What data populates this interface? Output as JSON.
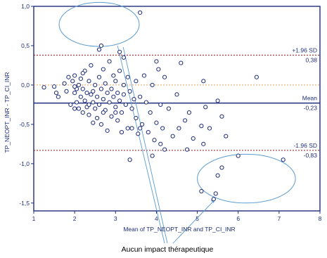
{
  "chart_data": {
    "type": "scatter",
    "title": "",
    "xlabel": "Mean of TP_NEOPT_INR and TP_CI_INR",
    "ylabel": "TP_NEOPT_INR - TP_CI_INR",
    "xlim": [
      1,
      8
    ],
    "ylim": [
      -1.6,
      1.0
    ],
    "x_ticks": [
      "1",
      "2",
      "3",
      "4",
      "5",
      "6",
      "7",
      "8"
    ],
    "y_ticks": [
      "1,0",
      "0,5",
      "0,0",
      "-0,5",
      "-1,0",
      "-1,5"
    ],
    "grid": false,
    "reference_lines": [
      {
        "id": "upper-loa",
        "label": "+1.96 SD",
        "value_label": "0,38",
        "y": 0.38,
        "style": "dotted",
        "color": "#8B1A1A"
      },
      {
        "id": "mean",
        "label": "Mean",
        "value_label": "-0,23",
        "y": -0.23,
        "style": "solid",
        "color": "#1F2E7A"
      },
      {
        "id": "lower-loa",
        "label": "-1.96 SD",
        "value_label": "-0,83",
        "y": -0.83,
        "style": "dotted",
        "color": "#8B1A1A"
      },
      {
        "id": "zero",
        "label": "",
        "value_label": "",
        "y": 0.0,
        "style": "dotted",
        "color": "#E0A060"
      }
    ],
    "annotation": {
      "text": "Aucun impact thérapeutique",
      "ellipses": [
        {
          "cx": 2.6,
          "cy": 0.77,
          "rx": 0.98,
          "ry": 0.28
        },
        {
          "cx": 6.2,
          "cy": -1.19,
          "rx": 1.2,
          "ry": 0.31
        }
      ]
    },
    "points": [
      [
        1.25,
        -0.03
      ],
      [
        1.5,
        -0.02
      ],
      [
        1.55,
        -0.1
      ],
      [
        1.6,
        -0.15
      ],
      [
        1.75,
        0.02
      ],
      [
        1.8,
        -0.08
      ],
      [
        1.85,
        0.1
      ],
      [
        1.9,
        -0.25
      ],
      [
        1.95,
        0.05
      ],
      [
        2.0,
        0.12
      ],
      [
        2.0,
        -0.1
      ],
      [
        2.05,
        -0.05
      ],
      [
        2.05,
        -0.22
      ],
      [
        2.1,
        -0.3
      ],
      [
        2.1,
        0.0
      ],
      [
        2.15,
        0.08
      ],
      [
        2.15,
        -0.15
      ],
      [
        2.2,
        -0.35
      ],
      [
        2.2,
        -0.05
      ],
      [
        2.25,
        0.18
      ],
      [
        2.25,
        -0.2
      ],
      [
        2.3,
        -0.1
      ],
      [
        2.3,
        -0.28
      ],
      [
        2.35,
        0.05
      ],
      [
        2.35,
        -0.38
      ],
      [
        2.4,
        -0.12
      ],
      [
        2.4,
        0.25
      ],
      [
        2.45,
        -0.22
      ],
      [
        2.45,
        -0.08
      ],
      [
        2.5,
        0.0
      ],
      [
        2.5,
        -0.3
      ],
      [
        2.55,
        -0.42
      ],
      [
        2.55,
        -0.15
      ],
      [
        2.6,
        0.1
      ],
      [
        2.6,
        -0.25
      ],
      [
        2.65,
        -0.05
      ],
      [
        2.65,
        -0.5
      ],
      [
        2.7,
        0.2
      ],
      [
        2.7,
        -0.18
      ],
      [
        2.75,
        -0.32
      ],
      [
        2.75,
        0.02
      ],
      [
        2.8,
        -0.1
      ],
      [
        2.8,
        -0.58
      ],
      [
        2.85,
        0.3
      ],
      [
        2.85,
        -0.22
      ],
      [
        2.9,
        -0.05
      ],
      [
        2.9,
        -0.4
      ],
      [
        2.95,
        0.12
      ],
      [
        2.95,
        -0.15
      ],
      [
        3.0,
        -0.28
      ],
      [
        3.0,
        0.05
      ],
      [
        3.05,
        -0.1
      ],
      [
        3.05,
        -0.45
      ],
      [
        3.1,
        0.18
      ],
      [
        3.1,
        -0.2
      ],
      [
        3.15,
        -0.35
      ],
      [
        3.2,
        0.0
      ],
      [
        3.2,
        -0.12
      ],
      [
        3.25,
        -0.25
      ],
      [
        3.3,
        0.1
      ],
      [
        3.3,
        -0.55
      ],
      [
        3.35,
        -0.08
      ],
      [
        3.4,
        -0.3
      ],
      [
        3.45,
        -0.18
      ],
      [
        3.5,
        0.05
      ],
      [
        3.5,
        -0.42
      ],
      [
        3.55,
        -0.62
      ],
      [
        3.6,
        -0.15
      ],
      [
        3.65,
        -0.5
      ],
      [
        3.7,
        0.12
      ],
      [
        3.75,
        -0.22
      ],
      [
        3.8,
        -0.6
      ],
      [
        3.85,
        -0.35
      ],
      [
        3.9,
        0.0
      ],
      [
        3.95,
        -0.7
      ],
      [
        4.0,
        0.3
      ],
      [
        4.0,
        -0.48
      ],
      [
        4.05,
        0.2
      ],
      [
        4.1,
        -0.25
      ],
      [
        4.15,
        -0.55
      ],
      [
        4.2,
        0.1
      ],
      [
        4.3,
        -0.3
      ],
      [
        4.4,
        -0.65
      ],
      [
        4.5,
        -0.12
      ],
      [
        4.6,
        0.28
      ],
      [
        4.7,
        -0.45
      ],
      [
        4.8,
        -0.35
      ],
      [
        5.1,
        -0.52
      ],
      [
        5.15,
        0.05
      ],
      [
        5.2,
        -0.28
      ],
      [
        5.5,
        -0.2
      ],
      [
        5.6,
        -0.4
      ],
      [
        5.7,
        -0.65
      ],
      [
        6.45,
        0.1
      ],
      [
        2.0,
        -0.02
      ],
      [
        2.2,
        0.15
      ],
      [
        2.6,
        0.45
      ],
      [
        2.65,
        0.5
      ],
      [
        3.1,
        0.42
      ],
      [
        3.2,
        0.35
      ],
      [
        3.35,
        -0.95
      ],
      [
        3.6,
        -0.55
      ],
      [
        4.1,
        -0.75
      ],
      [
        4.9,
        -0.68
      ],
      [
        5.15,
        -0.75
      ],
      [
        5.6,
        -1.05
      ],
      [
        5.5,
        -1.15
      ],
      [
        5.45,
        -1.38
      ],
      [
        5.1,
        -1.35
      ],
      [
        5.4,
        -1.45
      ],
      [
        7.1,
        -0.95
      ],
      [
        3.6,
        0.92
      ],
      [
        4.2,
        -0.82
      ],
      [
        4.75,
        -0.82
      ],
      [
        5.3,
        -0.55
      ],
      [
        6.0,
        -0.9
      ],
      [
        3.0,
        -0.35
      ],
      [
        2.7,
        -0.35
      ],
      [
        2.45,
        -0.48
      ],
      [
        3.15,
        -0.6
      ],
      [
        3.4,
        -0.55
      ],
      [
        3.9,
        -0.9
      ],
      [
        4.55,
        -0.55
      ],
      [
        2.0,
        -0.3
      ],
      [
        2.35,
        -0.25
      ]
    ]
  }
}
